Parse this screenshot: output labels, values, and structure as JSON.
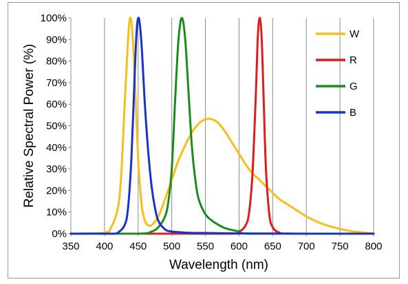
{
  "chart_data": {
    "type": "line",
    "title": "",
    "xlabel": "Wavelength (nm)",
    "ylabel": "Relative Spectral Power (%)",
    "xlim": [
      350,
      800
    ],
    "ylim": [
      0,
      100
    ],
    "x_ticks": [
      350,
      400,
      450,
      500,
      550,
      600,
      650,
      700,
      750,
      800
    ],
    "x_tick_labels": [
      "350",
      "400",
      "450",
      "500",
      "550",
      "600",
      "650",
      "700",
      "750",
      "800"
    ],
    "y_ticks": [
      0,
      10,
      20,
      30,
      40,
      50,
      60,
      70,
      80,
      90,
      100
    ],
    "y_tick_labels": [
      "0%",
      "10%",
      "20%",
      "30%",
      "40%",
      "50%",
      "60%",
      "70%",
      "80%",
      "90%",
      "100%"
    ],
    "grid": "vertical",
    "legend_position": "top-right",
    "series": [
      {
        "name": "W",
        "color": "#f7bd1a",
        "x": [
          350,
          400,
          410,
          420,
          425,
          430,
          435,
          438,
          441,
          445,
          450,
          455,
          460,
          465,
          470,
          480,
          490,
          500,
          510,
          520,
          530,
          540,
          550,
          560,
          570,
          580,
          590,
          600,
          610,
          620,
          630,
          640,
          650,
          660,
          670,
          680,
          690,
          700,
          720,
          740,
          760,
          780,
          800
        ],
        "y": [
          0,
          0.5,
          3,
          12,
          28,
          60,
          90,
          100,
          95,
          72,
          35,
          14,
          6,
          4,
          4,
          8,
          16,
          25,
          34,
          41,
          47,
          51,
          53,
          53,
          51,
          47,
          42,
          37,
          32,
          28,
          25,
          22,
          19,
          16,
          14,
          12,
          10,
          8,
          5,
          3,
          1.5,
          0.7,
          0.2
        ]
      },
      {
        "name": "R",
        "color": "#e01b1b",
        "x": [
          350,
          580,
          600,
          610,
          615,
          620,
          625,
          628,
          631,
          634,
          637,
          640,
          645,
          650,
          660,
          680,
          800
        ],
        "y": [
          0,
          0,
          1,
          4,
          10,
          28,
          65,
          92,
          100,
          88,
          58,
          30,
          9,
          3,
          0.5,
          0,
          0
        ]
      },
      {
        "name": "G",
        "color": "#1a8c1a",
        "x": [
          350,
          450,
          470,
          480,
          490,
          495,
          500,
          505,
          510,
          515,
          520,
          525,
          530,
          535,
          540,
          550,
          560,
          570,
          580,
          600,
          620,
          800
        ],
        "y": [
          0,
          0,
          1,
          3,
          8,
          15,
          30,
          62,
          90,
          100,
          90,
          65,
          40,
          25,
          16,
          9,
          6,
          4,
          2.5,
          1,
          0,
          0
        ]
      },
      {
        "name": "B",
        "color": "#1632c8",
        "x": [
          350,
          410,
          420,
          430,
          435,
          440,
          445,
          448,
          451,
          455,
          460,
          465,
          470,
          475,
          480,
          490,
          500,
          520,
          550,
          600,
          650,
          700,
          750,
          800
        ],
        "y": [
          0,
          0,
          0.5,
          4,
          12,
          35,
          75,
          95,
          100,
          88,
          60,
          38,
          22,
          12,
          6,
          2,
          1,
          0.5,
          0.3,
          0.1,
          0.1,
          0,
          0,
          0
        ]
      }
    ]
  }
}
